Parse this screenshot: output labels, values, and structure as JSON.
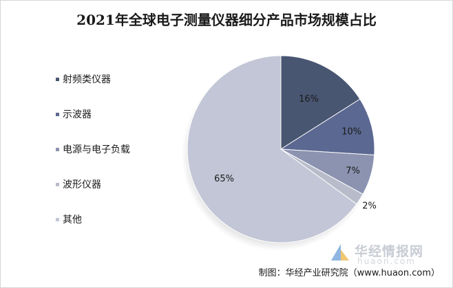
{
  "chart_data": {
    "type": "pie",
    "title": "2021年全球电子测量仪器细分产品市场规模占比",
    "categories": [
      "射频类仪器",
      "示波器",
      "电源与电子负载",
      "波形仪器",
      "其他"
    ],
    "values": [
      16,
      10,
      7,
      2,
      65
    ],
    "value_labels": [
      "16%",
      "10%",
      "7%",
      "2%",
      "65%"
    ],
    "unit": "%",
    "legend_position": "left",
    "colors": [
      "#495672",
      "#5b6891",
      "#8b93b0",
      "#b8bcca",
      "#c2c6d6"
    ]
  },
  "watermark": {
    "brand": "华经情报网",
    "url": "huaon.com"
  },
  "source": "制图：华经产业研究院（www.huaon.com）"
}
